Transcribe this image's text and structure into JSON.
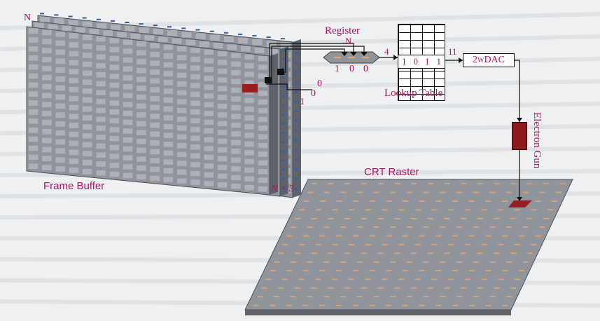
{
  "labels": {
    "frame_buffer": "Frame Buffer",
    "register": "Register",
    "register_n": "N",
    "register_bits": [
      "1",
      "0",
      "0"
    ],
    "lookup_table": "Lookup Table",
    "lookup_entry": [
      "1",
      "0",
      "1",
      "1"
    ],
    "dac": "2",
    "dac_sup": "W",
    "dac_suffix": "DAC",
    "electron_gun": "Electron Gun",
    "crt_raster": "CRT Raster",
    "plane_top": "N",
    "plane_count": "N = 3",
    "bit_labels": [
      "1",
      "0",
      "0"
    ],
    "wire_4": "4",
    "wire_11": "11"
  },
  "colors": {
    "label": "#b01060",
    "cell_face": "#8f959b",
    "cell_top": "#c3c8cd",
    "cell_side": "#5d6369",
    "frame_blue": "#2e5fa8",
    "highlight": "#9a1d1f",
    "crt_dash": "#e8a46a"
  }
}
